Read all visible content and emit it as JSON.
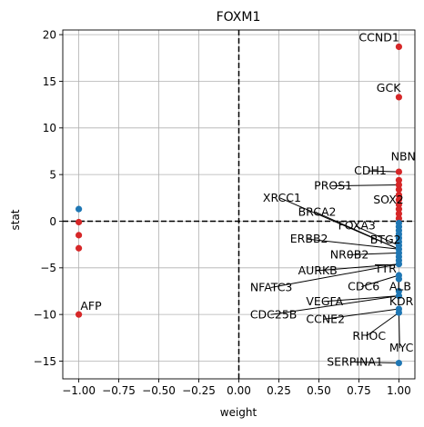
{
  "chart_data": {
    "type": "scatter",
    "title": "FOXM1",
    "xlabel": "weight",
    "ylabel": "stat",
    "xlim": [
      -1.1,
      1.1
    ],
    "ylim": [
      -16.9,
      20.5
    ],
    "xticks": [
      -1.0,
      -0.75,
      -0.5,
      -0.25,
      0.0,
      0.25,
      0.5,
      0.75,
      1.0
    ],
    "xtick_labels": [
      "−1.00",
      "−0.75",
      "−0.50",
      "−0.25",
      "0.00",
      "0.25",
      "0.50",
      "0.75",
      "1.00"
    ],
    "yticks": [
      -15,
      -10,
      -5,
      0,
      5,
      10,
      15,
      20
    ],
    "ytick_labels": [
      "−15",
      "−10",
      "−5",
      "0",
      "5",
      "10",
      "15",
      "20"
    ],
    "grid": true,
    "reference_lines": {
      "x": 0,
      "y": 0,
      "style": "dashed"
    },
    "colors": {
      "positive": "#d62728",
      "negative": "#1f77b4"
    },
    "points": [
      {
        "x": 1.0,
        "y": 18.7,
        "color": "positive"
      },
      {
        "x": 1.0,
        "y": 13.3,
        "color": "positive"
      },
      {
        "x": 1.0,
        "y": 5.3,
        "color": "positive"
      },
      {
        "x": 1.0,
        "y": 4.4,
        "color": "positive"
      },
      {
        "x": 1.0,
        "y": 3.9,
        "color": "positive"
      },
      {
        "x": 1.0,
        "y": 3.4,
        "color": "positive"
      },
      {
        "x": 1.0,
        "y": 2.8,
        "color": "positive"
      },
      {
        "x": 1.0,
        "y": 2.3,
        "color": "positive"
      },
      {
        "x": 1.0,
        "y": 1.8,
        "color": "positive"
      },
      {
        "x": 1.0,
        "y": 1.3,
        "color": "positive"
      },
      {
        "x": 1.0,
        "y": 0.8,
        "color": "positive"
      },
      {
        "x": 1.0,
        "y": 0.3,
        "color": "positive"
      },
      {
        "x": 1.0,
        "y": -0.2,
        "color": "negative"
      },
      {
        "x": 1.0,
        "y": -0.6,
        "color": "negative"
      },
      {
        "x": 1.0,
        "y": -1.0,
        "color": "negative"
      },
      {
        "x": 1.0,
        "y": -1.4,
        "color": "negative"
      },
      {
        "x": 1.0,
        "y": -1.8,
        "color": "negative"
      },
      {
        "x": 1.0,
        "y": -2.2,
        "color": "negative"
      },
      {
        "x": 1.0,
        "y": -2.6,
        "color": "negative"
      },
      {
        "x": 1.0,
        "y": -3.0,
        "color": "negative"
      },
      {
        "x": 1.0,
        "y": -3.4,
        "color": "negative"
      },
      {
        "x": 1.0,
        "y": -3.8,
        "color": "negative"
      },
      {
        "x": 1.0,
        "y": -4.2,
        "color": "negative"
      },
      {
        "x": 1.0,
        "y": -4.6,
        "color": "negative"
      },
      {
        "x": 1.0,
        "y": -5.8,
        "color": "negative"
      },
      {
        "x": 1.0,
        "y": -6.2,
        "color": "negative"
      },
      {
        "x": 1.0,
        "y": -7.5,
        "color": "negative"
      },
      {
        "x": 1.0,
        "y": -8.0,
        "color": "negative"
      },
      {
        "x": 1.0,
        "y": -9.4,
        "color": "negative"
      },
      {
        "x": 1.0,
        "y": -9.8,
        "color": "negative"
      },
      {
        "x": 1.0,
        "y": -15.2,
        "color": "negative"
      },
      {
        "x": -1.0,
        "y": 1.3,
        "color": "negative"
      },
      {
        "x": -1.0,
        "y": -0.1,
        "color": "positive"
      },
      {
        "x": -1.0,
        "y": -1.5,
        "color": "positive"
      },
      {
        "x": -1.0,
        "y": -2.9,
        "color": "positive"
      },
      {
        "x": -1.0,
        "y": -10.0,
        "color": "positive"
      }
    ],
    "annotations": [
      {
        "text": "CCND1",
        "x": 1.0,
        "y": 18.7,
        "tx": 0.75,
        "ty": 19.3,
        "leader": false
      },
      {
        "text": "GCK",
        "x": 1.0,
        "y": 13.3,
        "tx": 0.86,
        "ty": 13.9,
        "leader": false
      },
      {
        "text": "NBN",
        "x": 1.0,
        "y": 5.3,
        "tx": 0.95,
        "ty": 6.5,
        "leader": false
      },
      {
        "text": "CDH1",
        "x": 1.0,
        "y": 5.3,
        "tx": 0.72,
        "ty": 5.0,
        "leader": true
      },
      {
        "text": "PROS1",
        "x": 1.0,
        "y": 3.9,
        "tx": 0.47,
        "ty": 3.4,
        "leader": true
      },
      {
        "text": "SOX2",
        "x": 1.0,
        "y": 1.8,
        "tx": 0.84,
        "ty": 1.9,
        "leader": false
      },
      {
        "text": "XRCC1",
        "x": 1.0,
        "y": -3.0,
        "tx": 0.15,
        "ty": 2.1,
        "leader": true
      },
      {
        "text": "BRCA2",
        "x": 1.0,
        "y": -3.0,
        "tx": 0.37,
        "ty": 0.6,
        "leader": true
      },
      {
        "text": "FOXA3",
        "x": 1.0,
        "y": -2.6,
        "tx": 0.62,
        "ty": -0.9,
        "leader": true
      },
      {
        "text": "BTG2",
        "x": 1.0,
        "y": -2.2,
        "tx": 0.82,
        "ty": -2.4,
        "leader": false
      },
      {
        "text": "ERBB2",
        "x": 1.0,
        "y": -3.0,
        "tx": 0.32,
        "ty": -2.3,
        "leader": true
      },
      {
        "text": "NR0B2",
        "x": 1.0,
        "y": -3.4,
        "tx": 0.57,
        "ty": -4.0,
        "leader": true
      },
      {
        "text": "TTR",
        "x": 1.0,
        "y": -4.6,
        "tx": 0.85,
        "ty": -5.5,
        "leader": false
      },
      {
        "text": "AURKB",
        "x": 1.0,
        "y": -4.6,
        "tx": 0.37,
        "ty": -5.7,
        "leader": true
      },
      {
        "text": "NFATC3",
        "x": 1.0,
        "y": -4.6,
        "tx": 0.07,
        "ty": -7.5,
        "leader": true
      },
      {
        "text": "CDC6",
        "x": 1.0,
        "y": -5.8,
        "tx": 0.68,
        "ty": -7.4,
        "leader": true
      },
      {
        "text": "ALB",
        "x": 1.0,
        "y": -7.5,
        "tx": 0.94,
        "ty": -7.4,
        "leader": false
      },
      {
        "text": "VEGFA",
        "x": 1.0,
        "y": -8.0,
        "tx": 0.42,
        "ty": -9.0,
        "leader": true
      },
      {
        "text": "KDR",
        "x": 1.0,
        "y": -8.0,
        "tx": 0.94,
        "ty": -9.0,
        "leader": false
      },
      {
        "text": "CDC25B",
        "x": 1.0,
        "y": -8.0,
        "tx": 0.07,
        "ty": -10.4,
        "leader": true
      },
      {
        "text": "CCNE2",
        "x": 1.0,
        "y": -9.4,
        "tx": 0.42,
        "ty": -10.9,
        "leader": true
      },
      {
        "text": "RHOC",
        "x": 1.0,
        "y": -9.8,
        "tx": 0.71,
        "ty": -12.7,
        "leader": true
      },
      {
        "text": "MYC",
        "x": 1.0,
        "y": -9.8,
        "tx": 0.94,
        "ty": -14.0,
        "leader": true
      },
      {
        "text": "SERPINA1",
        "x": 1.0,
        "y": -15.2,
        "tx": 0.55,
        "ty": -15.5,
        "leader": true
      },
      {
        "text": "AFP",
        "x": -1.0,
        "y": -10.0,
        "tx": -0.99,
        "ty": -9.5,
        "leader": false
      }
    ]
  }
}
